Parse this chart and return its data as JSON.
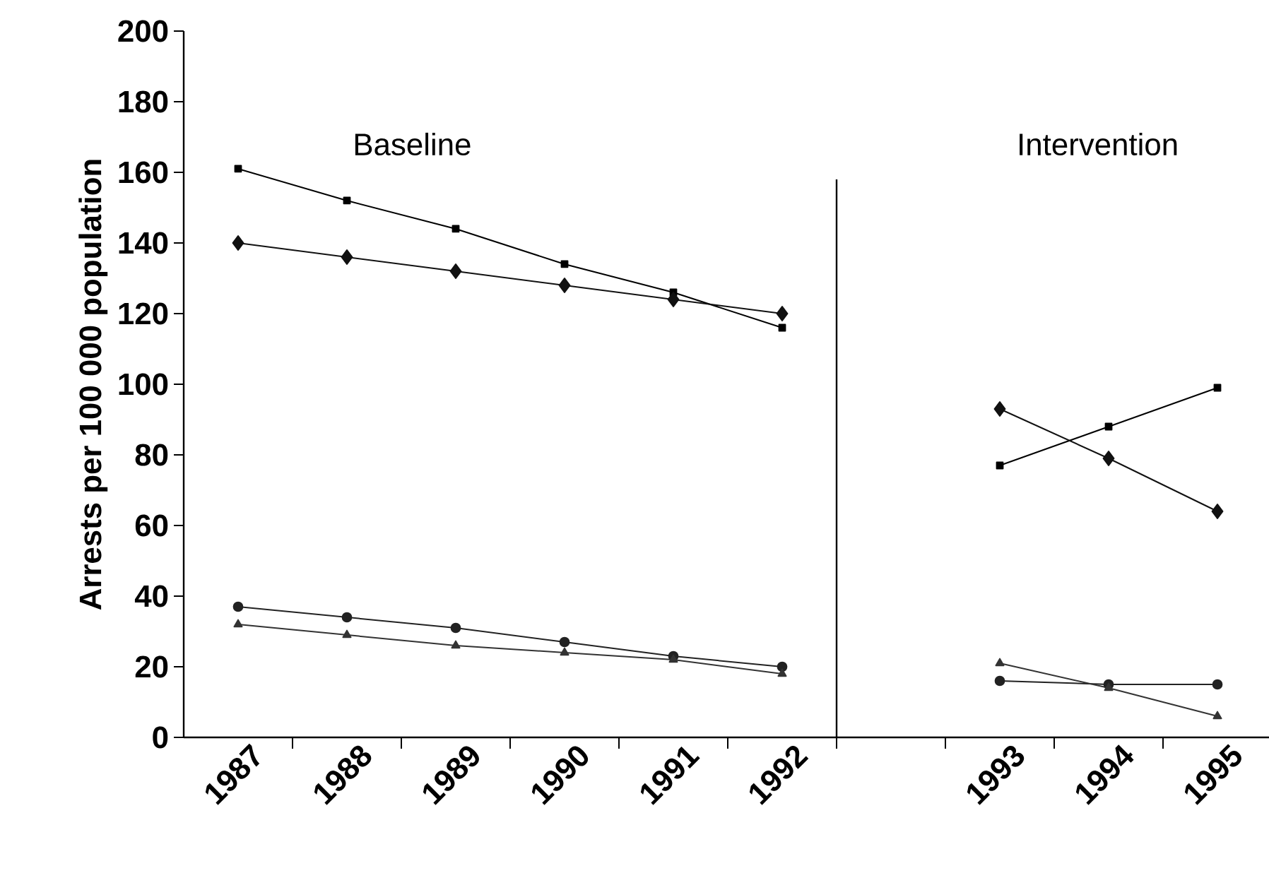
{
  "chart_data": {
    "type": "line",
    "ylabel": "Arrests per 100 000 population",
    "categories": [
      "1987",
      "1988",
      "1989",
      "1990",
      "1991",
      "1992",
      null,
      "1993",
      "1994",
      "1995"
    ],
    "series": [
      {
        "color": "#000000",
        "marker": "square",
        "values": [
          161,
          152,
          144,
          134,
          126,
          116,
          null,
          77,
          88,
          99
        ]
      },
      {
        "color": "#111111",
        "marker": "diamond",
        "values": [
          140,
          136,
          132,
          128,
          124,
          120,
          null,
          93,
          79,
          64
        ]
      },
      {
        "color": "#222222",
        "marker": "circle",
        "values": [
          37,
          34,
          31,
          27,
          23,
          20,
          null,
          16,
          15,
          15
        ]
      },
      {
        "color": "#333333",
        "marker": "triangle",
        "values": [
          32,
          29,
          26,
          24,
          22,
          18,
          null,
          21,
          14,
          6
        ]
      }
    ],
    "ylim": [
      0,
      200
    ],
    "yticks": [
      0,
      20,
      40,
      60,
      80,
      100,
      120,
      140,
      160,
      180,
      200
    ],
    "annotations": [
      "Baseline",
      "Intervention"
    ],
    "grid": false
  }
}
